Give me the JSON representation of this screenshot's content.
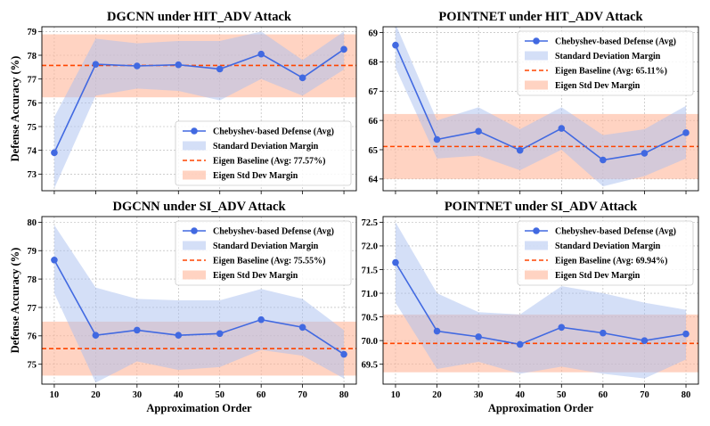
{
  "figure": {
    "colors": {
      "line": "#4169e1",
      "band": "#a9bff0",
      "baseline": "#ff4500",
      "baseline_band": "#ffb59a",
      "grid": "#b0b0b0"
    },
    "legend_labels": {
      "line": "Chebyshev-based Defense (Avg)",
      "band": "Standard Deviation Margin",
      "baseline_band": "Eigen Std Dev Margin"
    }
  },
  "chart_data": [
    {
      "type": "line",
      "title": "DGCNN under HIT_ADV Attack",
      "xlabel": "",
      "ylabel": "Defense Accuracy (%)",
      "x": [
        10,
        20,
        30,
        40,
        50,
        60,
        70,
        80
      ],
      "xlim": [
        7,
        83
      ],
      "ylim": [
        72.3,
        79.2
      ],
      "yticks": [
        73,
        74,
        75,
        76,
        77,
        78,
        79
      ],
      "series": [
        {
          "name": "Chebyshev-based Defense (Avg)",
          "values": [
            73.9,
            77.62,
            77.55,
            77.6,
            77.42,
            78.05,
            77.05,
            78.25
          ],
          "lower": [
            72.4,
            76.3,
            76.6,
            76.5,
            76.1,
            77.0,
            76.3,
            77.4
          ],
          "upper": [
            75.4,
            78.7,
            78.5,
            78.6,
            78.6,
            79.0,
            77.8,
            79.0
          ]
        }
      ],
      "baseline": {
        "label": "Eigen Baseline (Avg: 77.57%)",
        "value": 77.57,
        "lower": 76.23,
        "upper": 78.88
      },
      "legend": "lower-right"
    },
    {
      "type": "line",
      "title": "POINTNET under HIT_ADV Attack",
      "xlabel": "",
      "ylabel": "",
      "x": [
        10,
        20,
        30,
        40,
        50,
        60,
        70,
        80
      ],
      "xlim": [
        7,
        83
      ],
      "ylim": [
        63.6,
        69.2
      ],
      "yticks": [
        64,
        65,
        66,
        67,
        68,
        69
      ],
      "series": [
        {
          "name": "Chebyshev-based Defense (Avg)",
          "values": [
            68.57,
            65.35,
            65.63,
            64.98,
            65.73,
            64.65,
            64.88,
            65.58
          ],
          "lower": [
            67.8,
            64.7,
            64.8,
            64.3,
            65.0,
            63.75,
            64.1,
            64.7
          ],
          "upper": [
            69.3,
            66.0,
            66.45,
            65.7,
            66.45,
            65.5,
            65.7,
            66.5
          ]
        }
      ],
      "baseline": {
        "label": "Eigen Baseline (Avg: 65.11%)",
        "value": 65.11,
        "lower": 64.0,
        "upper": 66.22
      },
      "legend": "upper-right"
    },
    {
      "type": "line",
      "title": "DGCNN under SI_ADV Attack",
      "xlabel": "Approximation Order",
      "ylabel": "Defense Accuracy (%)",
      "x": [
        10,
        20,
        30,
        40,
        50,
        60,
        70,
        80
      ],
      "xlim": [
        7,
        83
      ],
      "ylim": [
        74.3,
        80.2
      ],
      "yticks": [
        75,
        76,
        77,
        78,
        79,
        80
      ],
      "series": [
        {
          "name": "Chebyshev-based Defense (Avg)",
          "values": [
            78.67,
            76.02,
            76.2,
            76.02,
            76.08,
            76.57,
            76.3,
            75.35
          ],
          "lower": [
            77.5,
            74.35,
            75.1,
            74.8,
            74.9,
            75.5,
            75.3,
            74.5
          ],
          "upper": [
            79.9,
            77.7,
            77.3,
            77.25,
            77.25,
            77.65,
            77.3,
            76.2
          ]
        }
      ],
      "baseline": {
        "label": "Eigen Baseline (Avg: 75.55%)",
        "value": 75.55,
        "lower": 74.6,
        "upper": 76.5
      },
      "legend": "upper-right"
    },
    {
      "type": "line",
      "title": "POINTNET under SI_ADV Attack",
      "xlabel": "Approximation Order",
      "ylabel": "",
      "x": [
        10,
        20,
        30,
        40,
        50,
        60,
        70,
        80
      ],
      "xlim": [
        7,
        83
      ],
      "ylim": [
        69.08,
        72.62
      ],
      "yticks": [
        69.5,
        70.0,
        70.5,
        71.0,
        71.5,
        72.0,
        72.5
      ],
      "ytick_labels": [
        "69.5",
        "70.0",
        "70.5",
        "71.0",
        "71.5",
        "72.0",
        "72.5"
      ],
      "series": [
        {
          "name": "Chebyshev-based Defense (Avg)",
          "values": [
            71.65,
            70.2,
            70.08,
            69.92,
            70.28,
            70.16,
            70.0,
            70.14
          ],
          "lower": [
            70.8,
            69.4,
            69.55,
            69.3,
            69.45,
            69.3,
            69.2,
            69.6
          ],
          "upper": [
            72.5,
            71.0,
            70.6,
            70.55,
            71.15,
            71.0,
            70.8,
            70.65
          ]
        }
      ],
      "baseline": {
        "label": "Eigen Baseline (Avg: 69.94%)",
        "value": 69.94,
        "lower": 69.33,
        "upper": 70.55
      },
      "legend": "upper-right"
    }
  ]
}
